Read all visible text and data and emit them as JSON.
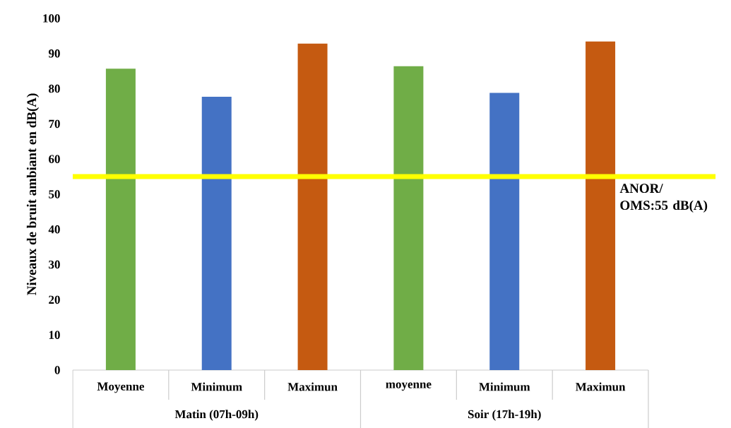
{
  "chart_data": {
    "type": "bar",
    "ylabel": "Niveaux de bruit  ambiant en dB(A)",
    "categories": [
      "Moyenne",
      "Minimum",
      "Maximun",
      "moyenne",
      "Minimum",
      "Maximun"
    ],
    "values": [
      85.7,
      77.7,
      92.8,
      86.4,
      78.8,
      93.4
    ],
    "colors": [
      "#70ad47",
      "#4472c4",
      "#c55a11",
      "#70ad47",
      "#4472c4",
      "#c55a11"
    ],
    "ylim": [
      0,
      100
    ],
    "yticks": [
      0,
      10,
      20,
      30,
      40,
      50,
      60,
      70,
      80,
      90,
      100
    ],
    "ref_lines": [
      {
        "axis": "y",
        "value": 55,
        "label": "ANOR/ OMS:55 dB(A)",
        "color": "#ffff00"
      }
    ],
    "annotations": [
      "Matin (07h-09h)",
      "Soir (17h-19h)"
    ],
    "grid": false
  }
}
